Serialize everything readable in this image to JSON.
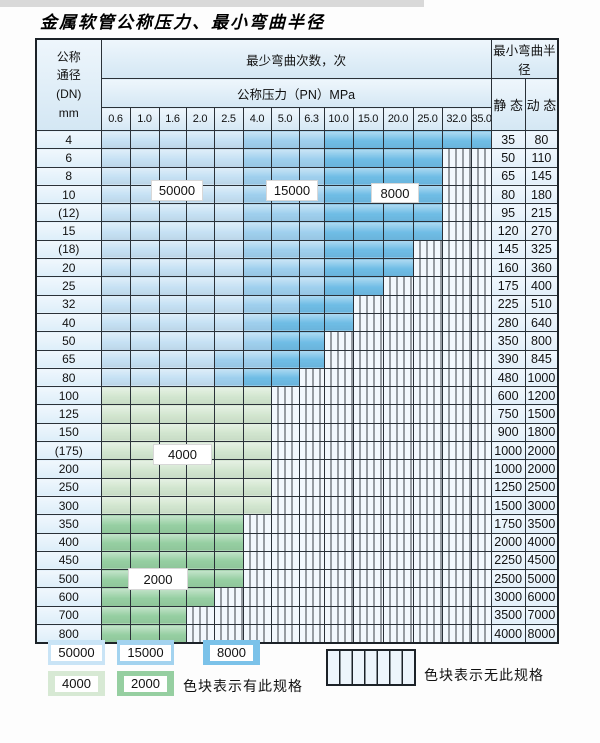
{
  "title": "金属软管公称压力、最小弯曲半径",
  "table": {
    "corner_header": "公称\n通径\n(DN)\nmm",
    "bend_cycles_header": "最少弯曲次数，次",
    "pressure_header": "公称压力（PN）MPa",
    "radius_header": "最小弯曲半径",
    "static_label": "静 态",
    "dynamic_label": "动 态",
    "pressure_columns": [
      "0.6",
      "1.0",
      "1.6",
      "2.0",
      "2.5",
      "4.0",
      "5.0",
      "6.3",
      "10.0",
      "15.0",
      "20.0",
      "25.0",
      "32.0",
      "35.0"
    ],
    "rows": [
      {
        "dn": "4",
        "zones": [
          [
            "50000",
            5
          ],
          [
            "15000",
            3
          ],
          [
            "8000",
            6
          ]
        ],
        "static": "35",
        "dynamic": "80"
      },
      {
        "dn": "6",
        "zones": [
          [
            "50000",
            5
          ],
          [
            "15000",
            3
          ],
          [
            "8000",
            4
          ]
        ],
        "static": "50",
        "dynamic": "110"
      },
      {
        "dn": "8",
        "zones": [
          [
            "50000",
            5
          ],
          [
            "15000",
            3
          ],
          [
            "8000",
            4
          ]
        ],
        "static": "65",
        "dynamic": "145"
      },
      {
        "dn": "10",
        "zones": [
          [
            "50000",
            5
          ],
          [
            "15000",
            3
          ],
          [
            "8000",
            4
          ]
        ],
        "static": "80",
        "dynamic": "180"
      },
      {
        "dn": "(12)",
        "zones": [
          [
            "50000",
            5
          ],
          [
            "15000",
            3
          ],
          [
            "8000",
            4
          ]
        ],
        "static": "95",
        "dynamic": "215"
      },
      {
        "dn": "15",
        "zones": [
          [
            "50000",
            5
          ],
          [
            "15000",
            3
          ],
          [
            "8000",
            4
          ]
        ],
        "static": "120",
        "dynamic": "270"
      },
      {
        "dn": "(18)",
        "zones": [
          [
            "50000",
            5
          ],
          [
            "15000",
            3
          ],
          [
            "8000",
            3
          ]
        ],
        "static": "145",
        "dynamic": "325"
      },
      {
        "dn": "20",
        "zones": [
          [
            "50000",
            5
          ],
          [
            "15000",
            3
          ],
          [
            "8000",
            3
          ]
        ],
        "static": "160",
        "dynamic": "360"
      },
      {
        "dn": "25",
        "zones": [
          [
            "50000",
            5
          ],
          [
            "15000",
            3
          ],
          [
            "8000",
            2
          ]
        ],
        "static": "175",
        "dynamic": "400"
      },
      {
        "dn": "32",
        "zones": [
          [
            "50000",
            5
          ],
          [
            "15000",
            2
          ],
          [
            "8000",
            2
          ]
        ],
        "static": "225",
        "dynamic": "510"
      },
      {
        "dn": "40",
        "zones": [
          [
            "50000",
            5
          ],
          [
            "15000",
            1
          ],
          [
            "8000",
            3
          ]
        ],
        "static": "280",
        "dynamic": "640"
      },
      {
        "dn": "50",
        "zones": [
          [
            "50000",
            5
          ],
          [
            "15000",
            1
          ],
          [
            "8000",
            2
          ]
        ],
        "static": "350",
        "dynamic": "800"
      },
      {
        "dn": "65",
        "zones": [
          [
            "50000",
            4
          ],
          [
            "15000",
            2
          ],
          [
            "8000",
            2
          ]
        ],
        "static": "390",
        "dynamic": "845"
      },
      {
        "dn": "80",
        "zones": [
          [
            "50000",
            4
          ],
          [
            "15000",
            1
          ],
          [
            "8000",
            2
          ]
        ],
        "static": "480",
        "dynamic": "1000"
      },
      {
        "dn": "100",
        "zones": [
          [
            "4000",
            6
          ]
        ],
        "static": "600",
        "dynamic": "1200"
      },
      {
        "dn": "125",
        "zones": [
          [
            "4000",
            6
          ]
        ],
        "static": "750",
        "dynamic": "1500"
      },
      {
        "dn": "150",
        "zones": [
          [
            "4000",
            6
          ]
        ],
        "static": "900",
        "dynamic": "1800"
      },
      {
        "dn": "(175)",
        "zones": [
          [
            "4000",
            6
          ]
        ],
        "static": "1000",
        "dynamic": "2000"
      },
      {
        "dn": "200",
        "zones": [
          [
            "4000",
            6
          ]
        ],
        "static": "1000",
        "dynamic": "2000"
      },
      {
        "dn": "250",
        "zones": [
          [
            "4000",
            6
          ]
        ],
        "static": "1250",
        "dynamic": "2500"
      },
      {
        "dn": "300",
        "zones": [
          [
            "4000",
            6
          ]
        ],
        "static": "1500",
        "dynamic": "3000"
      },
      {
        "dn": "350",
        "zones": [
          [
            "2000",
            5
          ]
        ],
        "static": "1750",
        "dynamic": "3500"
      },
      {
        "dn": "400",
        "zones": [
          [
            "2000",
            5
          ]
        ],
        "static": "2000",
        "dynamic": "4000"
      },
      {
        "dn": "450",
        "zones": [
          [
            "2000",
            5
          ]
        ],
        "static": "2250",
        "dynamic": "4500"
      },
      {
        "dn": "500",
        "zones": [
          [
            "2000",
            5
          ]
        ],
        "static": "2500",
        "dynamic": "5000"
      },
      {
        "dn": "600",
        "zones": [
          [
            "2000",
            4
          ]
        ],
        "static": "3000",
        "dynamic": "6000"
      },
      {
        "dn": "700",
        "zones": [
          [
            "2000",
            3
          ]
        ],
        "static": "3500",
        "dynamic": "7000"
      },
      {
        "dn": "800",
        "zones": [
          [
            "2000",
            3
          ]
        ],
        "static": "4000",
        "dynamic": "8000"
      }
    ]
  },
  "zone_colors": {
    "50000": "#c6e1f4",
    "15000": "#9fd0ee",
    "8000": "#6fbde6",
    "4000": "#d2e6cf",
    "2000": "#96cfa2"
  },
  "overlay_labels": [
    {
      "id": "50000",
      "text": "50000"
    },
    {
      "id": "15000",
      "text": "15000"
    },
    {
      "id": "8000",
      "text": "8000"
    },
    {
      "id": "4000",
      "text": "4000"
    },
    {
      "id": "2000",
      "text": "2000"
    }
  ],
  "legend": {
    "swatches": [
      {
        "id": "50000",
        "label": "50000",
        "color": "#c9e4f6"
      },
      {
        "id": "15000",
        "label": "15000",
        "color": "#a3d3ef"
      },
      {
        "id": "8000",
        "label": "8000",
        "color": "#7bc2e9"
      },
      {
        "id": "4000",
        "label": "4000",
        "color": "#d7e9d4"
      },
      {
        "id": "2000",
        "label": "2000",
        "color": "#96cfa1"
      }
    ],
    "has_spec_text": "色块表示有此规格",
    "no_spec_text": "色块表示无此规格"
  }
}
